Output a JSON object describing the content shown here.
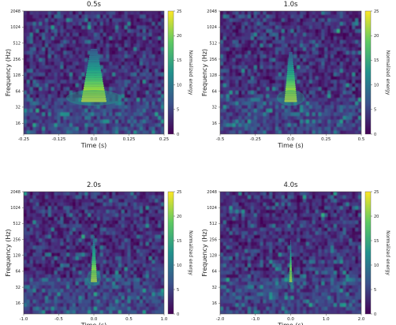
{
  "chart_data": [
    {
      "type": "heatmap",
      "title": "0.5s",
      "xlabel": "Time (s)",
      "ylabel": "Frequency (Hz)",
      "colorbar_label": "Normalized energy",
      "xlim": [
        -0.25,
        0.25
      ],
      "x_ticks": [
        "-0.25",
        "-0.125",
        "0.0",
        "0.125",
        "0.25"
      ],
      "y_scale": "log2",
      "ylim": [
        10,
        2048
      ],
      "y_ticks": [
        "16",
        "32",
        "64",
        "128",
        "256",
        "512",
        "1024",
        "2048"
      ],
      "colorbar_range": [
        0,
        25
      ],
      "colorbar_ticks": [
        "0",
        "5",
        "10",
        "15",
        "20",
        "25"
      ],
      "colormap": "viridis",
      "chirp": {
        "t": 0.0,
        "f_low": 40,
        "f_high": 400,
        "peak_energy": 25
      }
    },
    {
      "type": "heatmap",
      "title": "1.0s",
      "xlabel": "Time (s)",
      "ylabel": "Frequency (Hz)",
      "colorbar_label": "Normalized energy",
      "xlim": [
        -0.5,
        0.5
      ],
      "x_ticks": [
        "-0.5",
        "-0.25",
        "0.0",
        "0.25",
        "0.5"
      ],
      "y_scale": "log2",
      "ylim": [
        10,
        2048
      ],
      "y_ticks": [
        "16",
        "32",
        "64",
        "128",
        "256",
        "512",
        "1024",
        "2048"
      ],
      "colorbar_range": [
        0,
        25
      ],
      "colorbar_ticks": [
        "0",
        "5",
        "10",
        "15",
        "20",
        "25"
      ],
      "colormap": "viridis",
      "chirp": {
        "t": 0.0,
        "f_low": 40,
        "f_high": 350,
        "peak_energy": 25
      }
    },
    {
      "type": "heatmap",
      "title": "2.0s",
      "xlabel": "Time (s)",
      "ylabel": "Frequency (Hz)",
      "colorbar_label": "Normalized energy",
      "xlim": [
        -1.0,
        1.0
      ],
      "x_ticks": [
        "-1.0",
        "-0.5",
        "0.0",
        "0.5",
        "1.0"
      ],
      "y_scale": "log2",
      "ylim": [
        10,
        2048
      ],
      "y_ticks": [
        "16",
        "32",
        "64",
        "128",
        "256",
        "512",
        "1024",
        "2048"
      ],
      "colorbar_range": [
        0,
        25
      ],
      "colorbar_ticks": [
        "0",
        "5",
        "10",
        "15",
        "20",
        "25"
      ],
      "colormap": "viridis",
      "chirp": {
        "t": 0.0,
        "f_low": 40,
        "f_high": 300,
        "peak_energy": 25
      }
    },
    {
      "type": "heatmap",
      "title": "4.0s",
      "xlabel": "Time (s)",
      "ylabel": "Frequency (Hz)",
      "colorbar_label": "Normalized energy",
      "xlim": [
        -2.0,
        2.0
      ],
      "x_ticks": [
        "-2.0",
        "-1.0",
        "0.0",
        "1.0",
        "2.0"
      ],
      "y_scale": "log2",
      "ylim": [
        10,
        2048
      ],
      "y_ticks": [
        "16",
        "32",
        "64",
        "128",
        "256",
        "512",
        "1024",
        "2048"
      ],
      "colorbar_range": [
        0,
        25
      ],
      "colorbar_ticks": [
        "0",
        "5",
        "10",
        "15",
        "20",
        "25"
      ],
      "colormap": "viridis",
      "chirp": {
        "t": 0.0,
        "f_low": 40,
        "f_high": 250,
        "peak_energy": 25
      }
    }
  ]
}
